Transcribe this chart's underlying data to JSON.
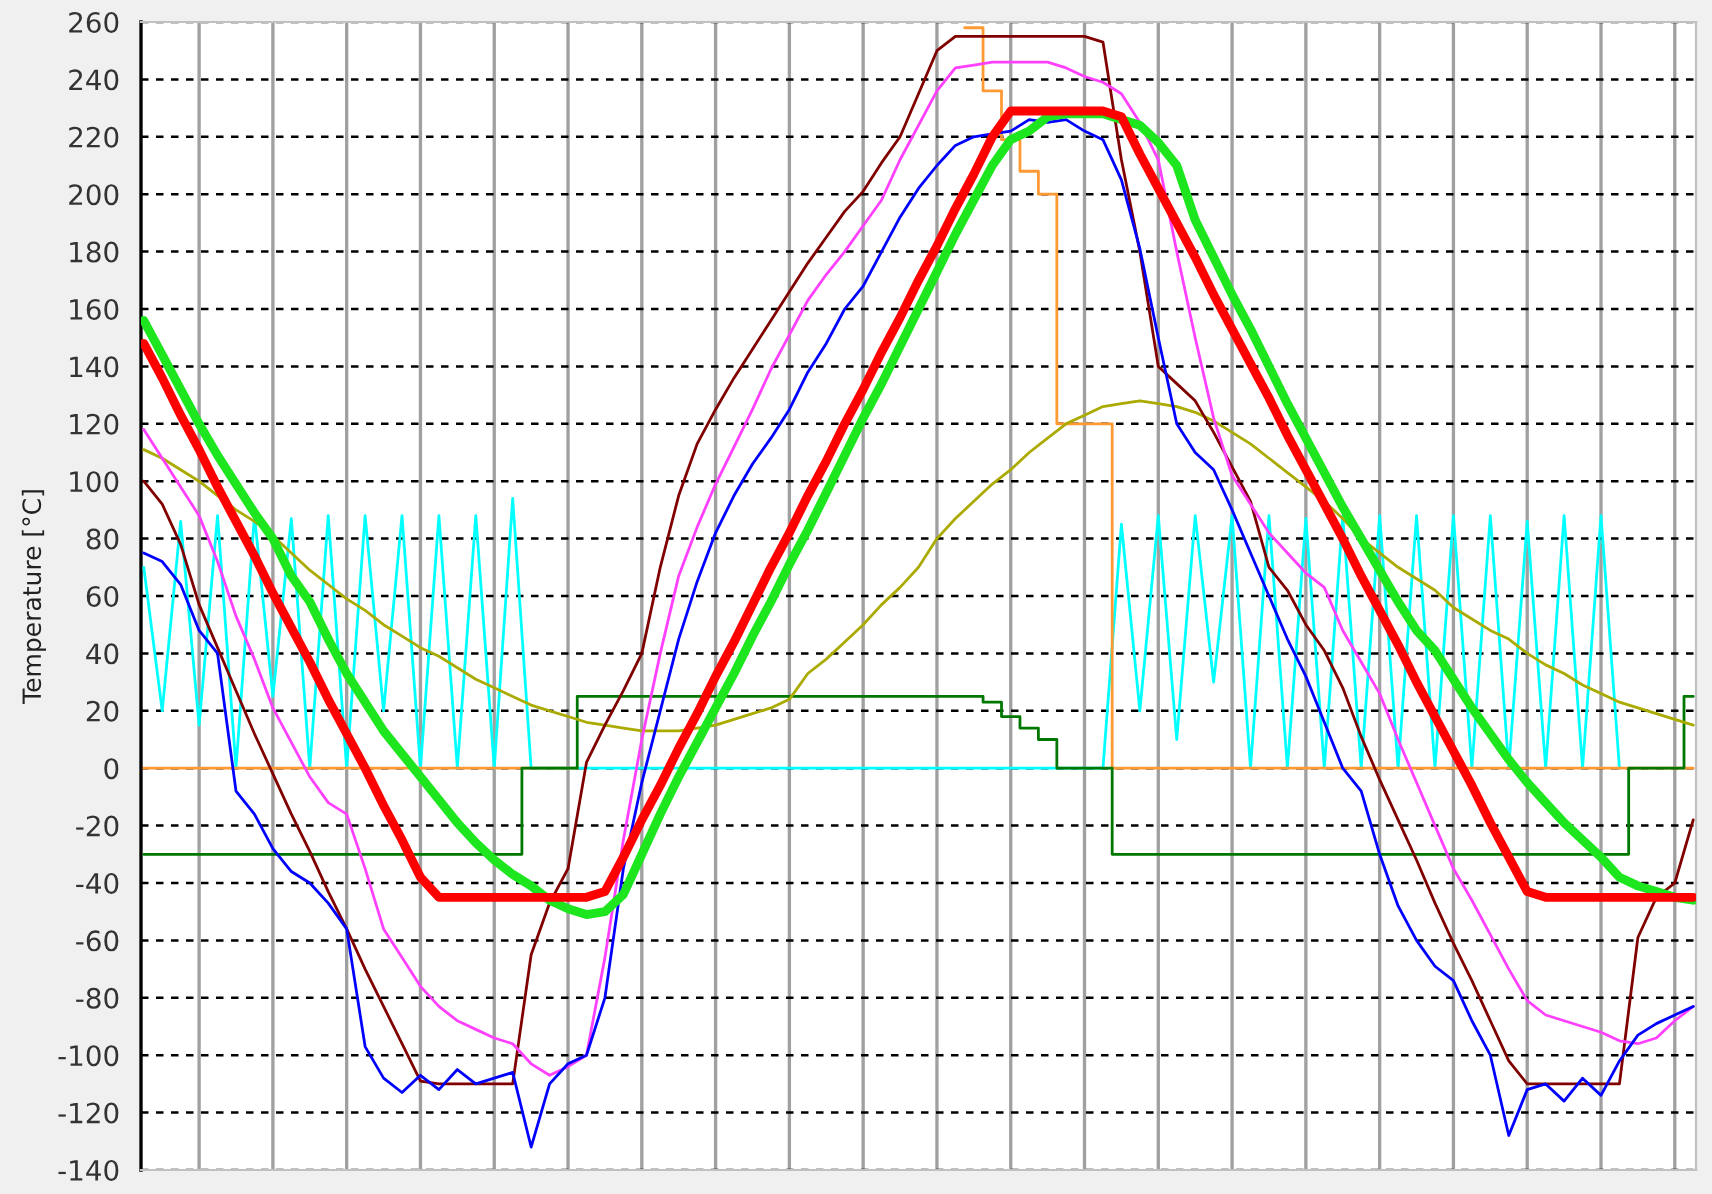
{
  "chart_data": {
    "type": "line",
    "ylabel": "Temperature [°C]",
    "ylim": [
      -140,
      260
    ],
    "yticks": [
      -140,
      -120,
      -100,
      -80,
      -60,
      -40,
      -20,
      0,
      20,
      40,
      60,
      80,
      100,
      120,
      140,
      160,
      180,
      200,
      220,
      240,
      260
    ],
    "grid": true,
    "tick_labels": "y",
    "legend": false,
    "categories": [
      null,
      null,
      null,
      null,
      null,
      null,
      null,
      null,
      null,
      null,
      null,
      null,
      null,
      null,
      null,
      null,
      null,
      null,
      null,
      null,
      null,
      null,
      null,
      null,
      null,
      null,
      null,
      null,
      null,
      null,
      null,
      null,
      null,
      null,
      null,
      null,
      null,
      null,
      null,
      null,
      null,
      null,
      null,
      null,
      null,
      null,
      null,
      null,
      null,
      null,
      null,
      null,
      null,
      null,
      null,
      null,
      null,
      null,
      null,
      null,
      null,
      null,
      null,
      null,
      null,
      null,
      null,
      null,
      null,
      null,
      null,
      null,
      null,
      null,
      null,
      null,
      null,
      null,
      null,
      null,
      null,
      null,
      null,
      null,
      null
    ],
    "series": [
      {
        "color": "#00ffff",
        "values": [
          70,
          20,
          86,
          15,
          88,
          0,
          88,
          25,
          87,
          0,
          88,
          0,
          88,
          20,
          88,
          0,
          88,
          0,
          88,
          0,
          94,
          0,
          0,
          0,
          0,
          0,
          0,
          0,
          0,
          0,
          0,
          0,
          0,
          0,
          0,
          0,
          0,
          0,
          0,
          0,
          0,
          0,
          0,
          0,
          0,
          0,
          0,
          0,
          0,
          0,
          0,
          0,
          0,
          85,
          20,
          88,
          10,
          88,
          30,
          88,
          0,
          88,
          0,
          87,
          0,
          88,
          0,
          88,
          0,
          88,
          0,
          88,
          0,
          88,
          0,
          86,
          0,
          88,
          0,
          88,
          0,
          null,
          null,
          null,
          null
        ]
      },
      {
        "type": "step",
        "color": "#ff9933",
        "values": [
          0,
          0,
          0,
          0,
          0,
          0,
          0,
          0,
          0,
          0,
          0,
          0,
          0,
          0,
          0,
          0,
          0,
          0,
          0,
          0,
          0,
          0,
          0,
          0,
          null,
          null,
          null,
          null,
          null,
          null,
          null,
          null,
          null,
          null,
          null,
          null,
          null,
          null,
          null,
          null,
          null,
          null,
          null,
          null,
          null,
          258,
          236,
          219,
          208,
          200,
          120,
          120,
          120,
          0,
          0,
          0,
          0,
          0,
          0,
          0,
          0,
          0,
          0,
          0,
          0,
          0,
          0,
          0,
          0,
          0,
          0,
          0,
          0,
          0,
          0,
          0,
          0,
          0,
          0,
          0,
          0,
          0,
          0,
          0,
          0
        ]
      },
      {
        "type": "step",
        "color": "#007700",
        "values": [
          -30,
          -30,
          -30,
          -30,
          -30,
          -30,
          -30,
          -30,
          -30,
          -30,
          -30,
          -30,
          -30,
          -30,
          -30,
          -30,
          -30,
          -30,
          -30,
          -30,
          -30,
          0,
          0,
          0,
          25,
          25,
          25,
          25,
          25,
          25,
          25,
          25,
          25,
          25,
          25,
          25,
          25,
          25,
          25,
          25,
          25,
          25,
          25,
          25,
          25,
          25,
          23,
          18,
          14,
          10,
          0,
          0,
          0,
          -30,
          -30,
          -30,
          -30,
          -30,
          -30,
          -30,
          -30,
          -30,
          -30,
          -30,
          -30,
          -30,
          -30,
          -30,
          -30,
          -30,
          -30,
          -30,
          -30,
          -30,
          -30,
          -30,
          -30,
          -30,
          -30,
          -30,
          -30,
          0,
          0,
          0,
          25
        ]
      },
      {
        "color": "#aaaa00",
        "values": [
          111,
          108,
          104,
          100,
          95,
          90,
          86,
          81,
          75,
          69,
          64,
          59,
          55,
          50,
          46,
          42,
          39,
          35,
          31,
          28,
          25,
          22,
          20,
          18,
          16,
          15,
          14,
          13,
          13,
          13,
          14,
          15,
          17,
          19,
          21,
          24,
          33,
          38,
          44,
          50,
          57,
          63,
          70,
          80,
          87,
          93,
          99,
          104,
          110,
          115,
          120,
          123,
          126,
          127,
          128,
          127,
          126,
          124,
          121,
          117,
          113,
          108,
          103,
          98,
          93,
          87,
          80,
          75,
          70,
          66,
          62,
          56,
          52,
          48,
          45,
          40,
          36,
          33,
          29,
          26,
          23,
          21,
          19,
          17,
          15
        ]
      },
      {
        "color": "#800000",
        "values": [
          100,
          92,
          78,
          57,
          42,
          27,
          12,
          -2,
          -16,
          -29,
          -43,
          -56,
          -70,
          -83,
          -96,
          -109,
          -110,
          -110,
          -110,
          -110,
          -110,
          -65,
          -47,
          -35,
          2,
          15,
          27,
          40,
          70,
          95,
          113,
          125,
          136,
          146,
          156,
          166,
          176,
          185,
          194,
          201,
          211,
          220,
          235,
          250,
          255,
          255,
          255,
          255,
          255,
          255,
          255,
          255,
          253,
          212,
          180,
          140,
          134,
          128,
          117,
          105,
          93,
          70,
          62,
          50,
          41,
          28,
          11,
          -4,
          -18,
          -32,
          -47,
          -61,
          -74,
          -88,
          -102,
          -110,
          -110,
          -110,
          -110,
          -110,
          -110,
          -59,
          -45,
          -40,
          -18
        ]
      },
      {
        "color": "#ff40ff",
        "values": [
          118,
          108,
          98,
          88,
          72,
          53,
          38,
          21,
          9,
          -3,
          -12,
          -16,
          -35,
          -56,
          -66,
          -76,
          -83,
          -88,
          -91,
          -94,
          -96,
          -103,
          -107,
          -104,
          -100,
          -66,
          -25,
          10,
          40,
          67,
          84,
          99,
          112,
          125,
          139,
          151,
          163,
          172,
          180,
          189,
          198,
          212,
          224,
          236,
          244,
          245,
          246,
          246,
          246,
          246,
          244,
          241,
          239,
          235,
          225,
          212,
          180,
          150,
          122,
          102,
          92,
          82,
          75,
          68,
          63,
          48,
          37,
          26,
          10,
          -5,
          -20,
          -35,
          -46,
          -58,
          -70,
          -81,
          -86,
          -88,
          -90,
          -92,
          -95,
          -96,
          -94,
          -88,
          -83
        ]
      },
      {
        "color": "#0000ff",
        "values": [
          75,
          72,
          64,
          48,
          40,
          -8,
          -16,
          -28,
          -36,
          -40,
          -47,
          -56,
          -97,
          -108,
          -113,
          -107,
          -112,
          -105,
          -110,
          -108,
          -106,
          -132,
          -110,
          -103,
          -100,
          -80,
          -35,
          -5,
          20,
          45,
          65,
          82,
          95,
          106,
          115,
          125,
          138,
          148,
          160,
          168,
          180,
          192,
          202,
          210,
          217,
          220,
          221,
          222,
          226,
          225,
          226,
          222,
          219,
          205,
          181,
          150,
          120,
          110,
          104,
          90,
          75,
          60,
          45,
          32,
          16,
          0,
          -8,
          -30,
          -48,
          -60,
          -69,
          -74,
          -88,
          -100,
          -128,
          -112,
          -110,
          -116,
          -108,
          -114,
          -102,
          -93,
          -89,
          -86,
          -83
        ]
      },
      {
        "color": "#1ee61e",
        "values": [
          156,
          144,
          132,
          120,
          109,
          99,
          89,
          80,
          67,
          58,
          45,
          33,
          23,
          13,
          5,
          -3,
          -11,
          -19,
          -26,
          -32,
          -37,
          -41,
          -46,
          -49,
          -51,
          -50,
          -44,
          -30,
          -16,
          -3,
          9,
          21,
          33,
          46,
          58,
          71,
          83,
          96,
          109,
          122,
          134,
          147,
          160,
          173,
          186,
          198,
          210,
          219,
          222,
          227,
          228,
          228,
          228,
          226,
          224,
          218,
          210,
          191,
          178,
          165,
          153,
          140,
          127,
          115,
          103,
          91,
          80,
          69,
          58,
          48,
          41,
          31,
          21,
          12,
          3,
          -5,
          -12,
          -19,
          -25,
          -31,
          -38,
          -41,
          -43,
          -45,
          -46
        ]
      },
      {
        "color": "#ff0000",
        "values": [
          148,
          136,
          123,
          111,
          98,
          86,
          74,
          61,
          49,
          37,
          24,
          12,
          0,
          -13,
          -25,
          -38,
          -45,
          -45,
          -45,
          -45,
          -45,
          -45,
          -45,
          -45,
          -45,
          -43,
          -31,
          -18,
          -6,
          7,
          19,
          32,
          44,
          57,
          70,
          82,
          95,
          107,
          120,
          132,
          145,
          157,
          170,
          182,
          195,
          207,
          220,
          229,
          229,
          229,
          229,
          229,
          229,
          227,
          214,
          202,
          190,
          178,
          165,
          153,
          141,
          129,
          116,
          104,
          92,
          80,
          67,
          55,
          43,
          30,
          18,
          6,
          -6,
          -19,
          -31,
          -43,
          -45,
          -45,
          -45,
          -45,
          -45,
          -45,
          -45,
          -45,
          -45
        ]
      }
    ]
  }
}
